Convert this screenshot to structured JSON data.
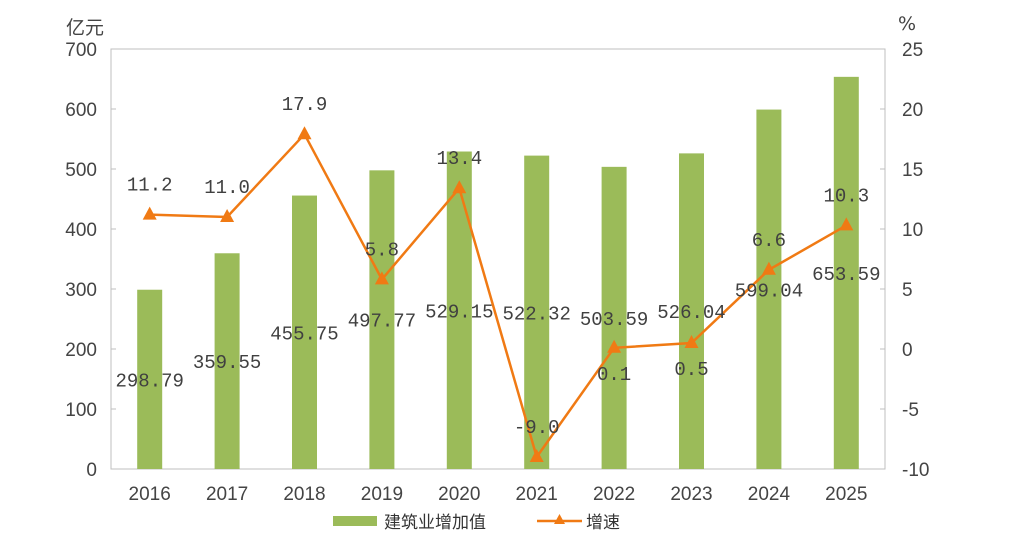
{
  "chart_data": {
    "type": "bar+line",
    "categories": [
      "2016",
      "2017",
      "2018",
      "2019",
      "2020",
      "2021",
      "2022",
      "2023",
      "2024",
      "2025"
    ],
    "series": [
      {
        "name": "建筑业增加值",
        "type": "bar",
        "axis": "left",
        "color": "#9BBB59",
        "values": [
          298.79,
          359.55,
          455.75,
          497.77,
          529.15,
          522.32,
          503.59,
          526.04,
          599.04,
          653.59
        ],
        "labels": [
          "298.79",
          "359.55",
          "455.75",
          "497.77",
          "529.15",
          "522.32",
          "503.59",
          "526.04",
          "599.04",
          "653.59"
        ]
      },
      {
        "name": "增速",
        "type": "line",
        "axis": "right",
        "color": "#F07A14",
        "values": [
          11.2,
          11.0,
          17.9,
          5.8,
          13.4,
          -9.0,
          0.1,
          0.5,
          6.6,
          10.3
        ],
        "labels": [
          "11.2",
          "11.0",
          "17.9",
          "5.8",
          "13.4",
          "-9.0",
          "0.1",
          "0.5",
          "6.6",
          "10.3"
        ]
      }
    ],
    "left_axis": {
      "unit": "亿元",
      "ylim": [
        0,
        700
      ],
      "ticks": [
        "0",
        "100",
        "200",
        "300",
        "400",
        "500",
        "600",
        "700"
      ]
    },
    "right_axis": {
      "unit": "%",
      "ylim": [
        -10,
        25
      ],
      "ticks": [
        "-10",
        "-5",
        "0",
        "5",
        "10",
        "15",
        "20",
        "25"
      ]
    },
    "grid": false,
    "legend": "bottom"
  }
}
